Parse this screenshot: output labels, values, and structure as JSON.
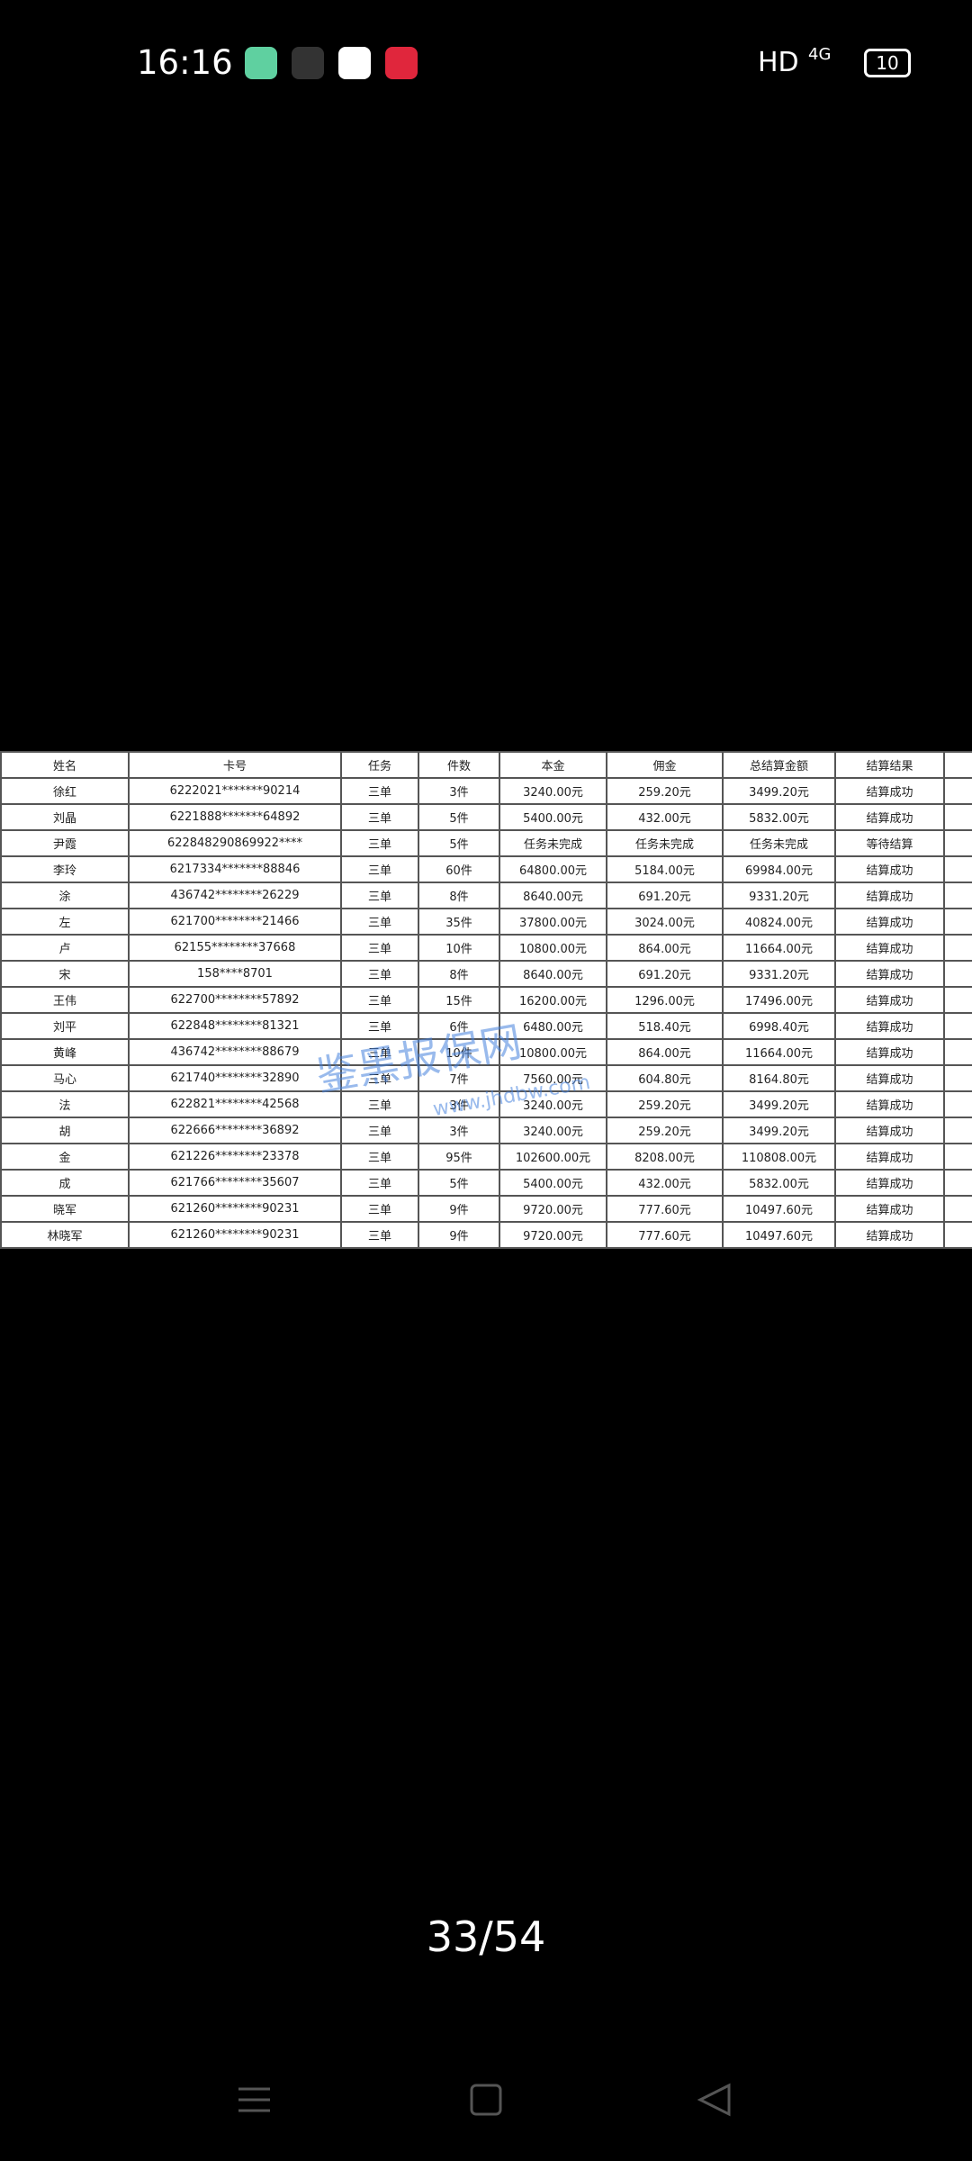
{
  "status_bar": {
    "time": "16:16",
    "network": "HD",
    "signal": "4G",
    "battery": "10"
  },
  "watermark": {
    "title": "鉴黑报保网",
    "url": "www.jhdbw.com"
  },
  "table": {
    "header": [
      "姓名",
      "卡号",
      "任务",
      "件数",
      "本金",
      "佣金",
      "总结算金额",
      "结算结果"
    ],
    "rows": [
      [
        "徐红",
        "6222021*******90214",
        "三单",
        "3件",
        "3240.00元",
        "259.20元",
        "3499.20元",
        "结算成功"
      ],
      [
        "刘晶",
        "6221888*******64892",
        "三单",
        "5件",
        "5400.00元",
        "432.00元",
        "5832.00元",
        "结算成功"
      ],
      [
        "尹霞",
        "622848290869922****",
        "三单",
        "5件",
        "任务未完成",
        "任务未完成",
        "任务未完成",
        "等待结算"
      ],
      [
        "李玲",
        "6217334*******88846",
        "三单",
        "60件",
        "64800.00元",
        "5184.00元",
        "69984.00元",
        "结算成功"
      ],
      [
        "涂",
        "436742********26229",
        "三单",
        "8件",
        "8640.00元",
        "691.20元",
        "9331.20元",
        "结算成功"
      ],
      [
        "左",
        "621700********21466",
        "三单",
        "35件",
        "37800.00元",
        "3024.00元",
        "40824.00元",
        "结算成功"
      ],
      [
        "卢",
        "62155********37668",
        "三单",
        "10件",
        "10800.00元",
        "864.00元",
        "11664.00元",
        "结算成功"
      ],
      [
        "宋",
        "158****8701",
        "三单",
        "8件",
        "8640.00元",
        "691.20元",
        "9331.20元",
        "结算成功"
      ],
      [
        "王伟",
        "622700********57892",
        "三单",
        "15件",
        "16200.00元",
        "1296.00元",
        "17496.00元",
        "结算成功"
      ],
      [
        "刘平",
        "622848********81321",
        "三单",
        "6件",
        "6480.00元",
        "518.40元",
        "6998.40元",
        "结算成功"
      ],
      [
        "黄峰",
        "436742********88679",
        "三单",
        "10件",
        "10800.00元",
        "864.00元",
        "11664.00元",
        "结算成功"
      ],
      [
        "马心",
        "621740********32890",
        "三单",
        "7件",
        "7560.00元",
        "604.80元",
        "8164.80元",
        "结算成功"
      ],
      [
        "法",
        "622821********42568",
        "三单",
        "3件",
        "3240.00元",
        "259.20元",
        "3499.20元",
        "结算成功"
      ],
      [
        "胡",
        "622666********36892",
        "三单",
        "3件",
        "3240.00元",
        "259.20元",
        "3499.20元",
        "结算成功"
      ],
      [
        "金",
        "621226********23378",
        "三单",
        "95件",
        "102600.00元",
        "8208.00元",
        "110808.00元",
        "结算成功"
      ],
      [
        "成",
        "621766********35607",
        "三单",
        "5件",
        "5400.00元",
        "432.00元",
        "5832.00元",
        "结算成功"
      ],
      [
        "晓军",
        "621260********90231",
        "三单",
        "9件",
        "9720.00元",
        "777.60元",
        "10497.60元",
        "结算成功"
      ],
      [
        "林晓军",
        "621260********90231",
        "三单",
        "9件",
        "9720.00元",
        "777.60元",
        "10497.60元",
        "结算成功"
      ]
    ]
  },
  "footer": {
    "page": "33/54"
  }
}
